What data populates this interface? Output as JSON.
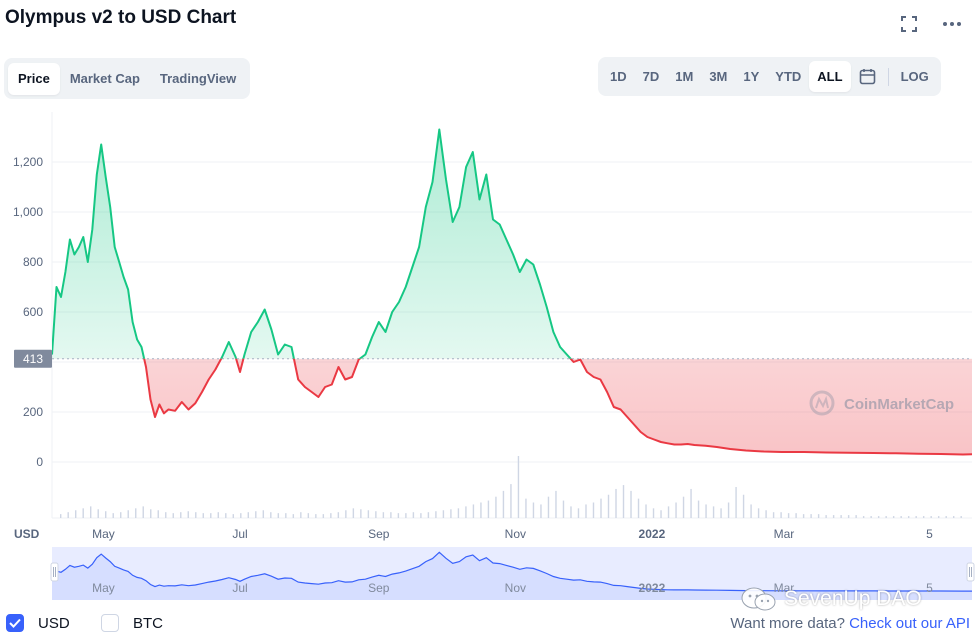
{
  "title": "Olympus v2 to USD Chart",
  "header_icons": {
    "fullscreen": "fullscreen-icon",
    "more": "more-horizontal-icon"
  },
  "tabs_left": [
    {
      "label": "Price",
      "active": true
    },
    {
      "label": "Market Cap",
      "active": false
    },
    {
      "label": "TradingView",
      "active": false
    }
  ],
  "ranges": [
    {
      "label": "1D",
      "active": false
    },
    {
      "label": "7D",
      "active": false
    },
    {
      "label": "1M",
      "active": false
    },
    {
      "label": "3M",
      "active": false
    },
    {
      "label": "1Y",
      "active": false
    },
    {
      "label": "YTD",
      "active": false
    },
    {
      "label": "ALL",
      "active": true
    }
  ],
  "calendar_icon": "calendar-icon",
  "log_label": "LOG",
  "colors": {
    "up": "#16c784",
    "down": "#ea3943",
    "nav": "#3861fb",
    "accent": "#3861fb"
  },
  "chart_data": {
    "type": "area",
    "ylabel": "USD",
    "yticks": [
      0,
      200,
      400,
      600,
      800,
      1000,
      1200
    ],
    "ytick_labels": [
      "0",
      "200",
      "",
      "600",
      "800",
      "1,000",
      "1,200"
    ],
    "baseline": 413,
    "baseline_label": "413",
    "xtick_labels": [
      "May",
      "Jul",
      "Sep",
      "Nov",
      "2022",
      "Mar",
      "5"
    ],
    "xticks": [
      "2021-05-01",
      "2021-07-01",
      "2021-09-01",
      "2021-11-01",
      "2022-01-01",
      "2022-03-01",
      "2022-05-05"
    ],
    "x_range": [
      "2021-04-08",
      "2022-05-24"
    ],
    "ylim": [
      -80,
      1340
    ],
    "watermark": "CoinMarketCap",
    "series": [
      {
        "x": [
          "2021-04-08",
          "2021-04-10",
          "2021-04-12",
          "2021-04-14",
          "2021-04-16",
          "2021-04-18",
          "2021-04-20",
          "2021-04-22",
          "2021-04-24",
          "2021-04-26",
          "2021-04-28",
          "2021-04-30",
          "2021-05-02",
          "2021-05-04",
          "2021-05-06",
          "2021-05-08",
          "2021-05-10",
          "2021-05-12",
          "2021-05-14",
          "2021-05-16",
          "2021-05-18",
          "2021-05-20",
          "2021-05-22",
          "2021-05-24",
          "2021-05-26",
          "2021-05-28",
          "2021-05-30",
          "2021-06-02",
          "2021-06-05",
          "2021-06-08",
          "2021-06-11",
          "2021-06-14",
          "2021-06-17",
          "2021-06-20",
          "2021-06-23",
          "2021-06-26",
          "2021-06-29",
          "2021-07-01",
          "2021-07-03",
          "2021-07-06",
          "2021-07-09",
          "2021-07-12",
          "2021-07-15",
          "2021-07-18",
          "2021-07-21",
          "2021-07-24",
          "2021-07-27",
          "2021-07-30",
          "2021-08-02",
          "2021-08-05",
          "2021-08-08",
          "2021-08-11",
          "2021-08-14",
          "2021-08-17",
          "2021-08-20",
          "2021-08-23",
          "2021-08-26",
          "2021-08-29",
          "2021-09-01",
          "2021-09-04",
          "2021-09-07",
          "2021-09-10",
          "2021-09-13",
          "2021-09-16",
          "2021-09-19",
          "2021-09-22",
          "2021-09-25",
          "2021-09-28",
          "2021-10-01",
          "2021-10-04",
          "2021-10-07",
          "2021-10-10",
          "2021-10-13",
          "2021-10-16",
          "2021-10-19",
          "2021-10-22",
          "2021-10-25",
          "2021-10-28",
          "2021-10-31",
          "2021-11-03",
          "2021-11-06",
          "2021-11-09",
          "2021-11-12",
          "2021-11-15",
          "2021-11-18",
          "2021-11-21",
          "2021-11-24",
          "2021-11-27",
          "2021-11-30",
          "2021-12-03",
          "2021-12-06",
          "2021-12-09",
          "2021-12-12",
          "2021-12-15",
          "2021-12-18",
          "2021-12-21",
          "2021-12-24",
          "2021-12-27",
          "2021-12-30",
          "2022-01-02",
          "2022-01-05",
          "2022-01-08",
          "2022-01-11",
          "2022-01-14",
          "2022-01-17",
          "2022-01-20",
          "2022-01-25",
          "2022-01-30",
          "2022-02-05",
          "2022-02-12",
          "2022-02-20",
          "2022-02-28",
          "2022-03-10",
          "2022-03-20",
          "2022-03-30",
          "2022-04-10",
          "2022-04-20",
          "2022-04-30",
          "2022-05-10",
          "2022-05-20",
          "2022-05-24"
        ],
        "y": [
          430,
          700,
          660,
          760,
          890,
          830,
          860,
          900,
          800,
          930,
          1150,
          1270,
          1140,
          1020,
          860,
          800,
          740,
          690,
          560,
          490,
          460,
          380,
          250,
          180,
          230,
          195,
          210,
          205,
          240,
          210,
          235,
          280,
          330,
          370,
          420,
          480,
          420,
          360,
          430,
          520,
          560,
          610,
          530,
          430,
          470,
          460,
          330,
          300,
          280,
          260,
          300,
          310,
          380,
          330,
          340,
          410,
          430,
          500,
          560,
          520,
          600,
          640,
          700,
          780,
          860,
          1020,
          1120,
          1330,
          1130,
          960,
          1020,
          1180,
          1240,
          1050,
          1150,
          970,
          950,
          890,
          830,
          760,
          810,
          790,
          710,
          620,
          520,
          460,
          430,
          400,
          410,
          360,
          340,
          330,
          280,
          220,
          210,
          180,
          150,
          120,
          100,
          90,
          80,
          75,
          70,
          70,
          72,
          68,
          65,
          60,
          52,
          46,
          42,
          40,
          40,
          38,
          37,
          36,
          35,
          33,
          32,
          30,
          31
        ]
      }
    ]
  },
  "volume_data": {
    "bars": [
      4,
      6,
      8,
      10,
      12,
      9,
      7,
      5,
      6,
      8,
      10,
      12,
      9,
      8,
      6,
      5,
      6,
      7,
      6,
      5,
      5,
      6,
      5,
      4,
      5,
      6,
      7,
      8,
      6,
      5,
      5,
      4,
      6,
      5,
      4,
      4,
      5,
      6,
      8,
      10,
      9,
      8,
      7,
      6,
      6,
      5,
      5,
      6,
      5,
      6,
      7,
      8,
      9,
      10,
      12,
      14,
      16,
      18,
      22,
      28,
      35,
      64,
      20,
      16,
      14,
      22,
      28,
      18,
      12,
      10,
      14,
      16,
      20,
      24,
      30,
      34,
      28,
      20,
      14,
      10,
      8,
      12,
      16,
      22,
      30,
      18,
      14,
      12,
      10,
      16,
      32,
      24,
      14,
      10,
      8,
      6,
      6,
      5,
      5,
      4,
      4,
      4,
      3,
      3,
      3,
      3,
      3,
      2,
      2,
      2,
      2,
      2,
      2,
      2,
      2,
      2,
      2,
      2,
      2,
      2,
      2
    ]
  },
  "footer": {
    "usd_label": "USD",
    "btc_label": "BTC",
    "more_data_text": "Want more data?",
    "api_link": "Check out our API"
  },
  "watermark_text": "SevenUp DAO"
}
